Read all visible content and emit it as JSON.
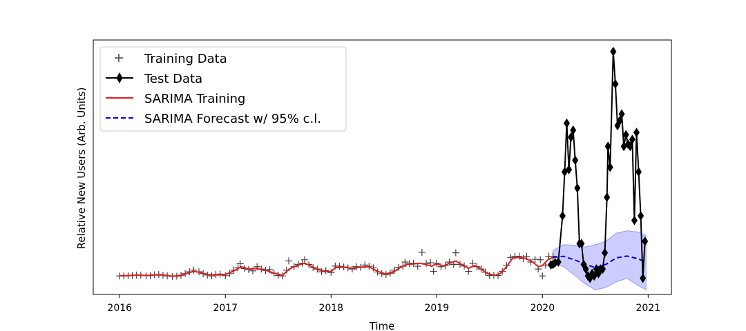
{
  "chart_data": {
    "type": "line",
    "title": "",
    "xlabel": "Time",
    "ylabel": "Relative New Users (Arb. Units)",
    "xlim": [
      2015.75,
      2021.22
    ],
    "ylim": [
      -0.05,
      1.05
    ],
    "y_ticks_shown": false,
    "x_ticks": [
      "2016",
      "2017",
      "2018",
      "2019",
      "2020",
      "2021"
    ],
    "x_tick_values": [
      2016,
      2017,
      2018,
      2019,
      2020,
      2021
    ],
    "legend_position": "top-left",
    "legend": [
      "Training Data",
      "Test Data",
      "SARIMA Training",
      "SARIMA Forecast w/ 95% c.l."
    ],
    "colors": {
      "training_data": "#404040",
      "test_data": "#000000",
      "sarima_training": "#e31a1c",
      "forecast": "#0000e6",
      "forecast_band": "#9999ff"
    },
    "series": [
      {
        "name": "Training Data",
        "style": "plus-markers",
        "points": [
          [
            2016.0,
            0.03
          ],
          [
            2016.04,
            0.03
          ],
          [
            2016.08,
            0.031
          ],
          [
            2016.12,
            0.032
          ],
          [
            2016.16,
            0.034
          ],
          [
            2016.2,
            0.033
          ],
          [
            2016.25,
            0.031
          ],
          [
            2016.29,
            0.031
          ],
          [
            2016.33,
            0.035
          ],
          [
            2016.37,
            0.036
          ],
          [
            2016.41,
            0.033
          ],
          [
            2016.45,
            0.03
          ],
          [
            2016.5,
            0.028
          ],
          [
            2016.54,
            0.029
          ],
          [
            2016.58,
            0.033
          ],
          [
            2016.62,
            0.04
          ],
          [
            2016.66,
            0.048
          ],
          [
            2016.7,
            0.055
          ],
          [
            2016.75,
            0.048
          ],
          [
            2016.79,
            0.04
          ],
          [
            2016.83,
            0.034
          ],
          [
            2016.87,
            0.03
          ],
          [
            2016.91,
            0.036
          ],
          [
            2016.95,
            0.038
          ],
          [
            2017.0,
            0.031
          ],
          [
            2017.04,
            0.04
          ],
          [
            2017.08,
            0.055
          ],
          [
            2017.12,
            0.065
          ],
          [
            2017.14,
            0.083
          ],
          [
            2017.18,
            0.062
          ],
          [
            2017.22,
            0.058
          ],
          [
            2017.26,
            0.052
          ],
          [
            2017.3,
            0.07
          ],
          [
            2017.34,
            0.06
          ],
          [
            2017.38,
            0.054
          ],
          [
            2017.42,
            0.057
          ],
          [
            2017.46,
            0.042
          ],
          [
            2017.5,
            0.032
          ],
          [
            2017.54,
            0.03
          ],
          [
            2017.58,
            0.055
          ],
          [
            2017.6,
            0.095
          ],
          [
            2017.65,
            0.07
          ],
          [
            2017.69,
            0.08
          ],
          [
            2017.73,
            0.085
          ],
          [
            2017.75,
            0.1
          ],
          [
            2017.79,
            0.08
          ],
          [
            2017.83,
            0.066
          ],
          [
            2017.87,
            0.06
          ],
          [
            2017.91,
            0.048
          ],
          [
            2017.95,
            0.053
          ],
          [
            2018.0,
            0.045
          ],
          [
            2018.04,
            0.073
          ],
          [
            2018.08,
            0.072
          ],
          [
            2018.12,
            0.069
          ],
          [
            2018.16,
            0.065
          ],
          [
            2018.2,
            0.06
          ],
          [
            2018.24,
            0.07
          ],
          [
            2018.28,
            0.067
          ],
          [
            2018.32,
            0.077
          ],
          [
            2018.36,
            0.072
          ],
          [
            2018.4,
            0.065
          ],
          [
            2018.44,
            0.047
          ],
          [
            2018.48,
            0.04
          ],
          [
            2018.52,
            0.036
          ],
          [
            2018.56,
            0.042
          ],
          [
            2018.6,
            0.055
          ],
          [
            2018.64,
            0.067
          ],
          [
            2018.68,
            0.072
          ],
          [
            2018.7,
            0.09
          ],
          [
            2018.74,
            0.083
          ],
          [
            2018.78,
            0.085
          ],
          [
            2018.82,
            0.072
          ],
          [
            2018.86,
            0.132
          ],
          [
            2018.9,
            0.084
          ],
          [
            2018.94,
            0.087
          ],
          [
            2018.97,
            0.05
          ],
          [
            2019.0,
            0.085
          ],
          [
            2019.04,
            0.07
          ],
          [
            2019.08,
            0.075
          ],
          [
            2019.12,
            0.09
          ],
          [
            2019.16,
            0.08
          ],
          [
            2019.18,
            0.13
          ],
          [
            2019.22,
            0.08
          ],
          [
            2019.26,
            0.073
          ],
          [
            2019.3,
            0.05
          ],
          [
            2019.34,
            0.085
          ],
          [
            2019.38,
            0.07
          ],
          [
            2019.42,
            0.06
          ],
          [
            2019.46,
            0.046
          ],
          [
            2019.5,
            0.032
          ],
          [
            2019.54,
            0.033
          ],
          [
            2019.58,
            0.032
          ],
          [
            2019.62,
            0.05
          ],
          [
            2019.66,
            0.075
          ],
          [
            2019.7,
            0.11
          ],
          [
            2019.74,
            0.115
          ],
          [
            2019.78,
            0.115
          ],
          [
            2019.82,
            0.105
          ],
          [
            2019.85,
            0.114
          ],
          [
            2019.89,
            0.09
          ],
          [
            2019.93,
            0.102
          ],
          [
            2019.96,
            0.06
          ],
          [
            2019.98,
            0.1
          ],
          [
            2020.0,
            0.03
          ],
          [
            2020.03,
            0.077
          ],
          [
            2020.06,
            0.115
          ],
          [
            2020.1,
            0.115
          ]
        ]
      },
      {
        "name": "SARIMA Training",
        "style": "line",
        "points": [
          [
            2016.0,
            0.031
          ],
          [
            2016.08,
            0.031
          ],
          [
            2016.16,
            0.034
          ],
          [
            2016.25,
            0.032
          ],
          [
            2016.33,
            0.034
          ],
          [
            2016.41,
            0.034
          ],
          [
            2016.5,
            0.029
          ],
          [
            2016.58,
            0.032
          ],
          [
            2016.66,
            0.045
          ],
          [
            2016.7,
            0.05
          ],
          [
            2016.75,
            0.046
          ],
          [
            2016.83,
            0.036
          ],
          [
            2016.91,
            0.034
          ],
          [
            2017.0,
            0.036
          ],
          [
            2017.08,
            0.052
          ],
          [
            2017.15,
            0.07
          ],
          [
            2017.22,
            0.06
          ],
          [
            2017.3,
            0.062
          ],
          [
            2017.38,
            0.055
          ],
          [
            2017.46,
            0.042
          ],
          [
            2017.54,
            0.033
          ],
          [
            2017.6,
            0.058
          ],
          [
            2017.65,
            0.07
          ],
          [
            2017.7,
            0.078
          ],
          [
            2017.75,
            0.085
          ],
          [
            2017.8,
            0.075
          ],
          [
            2017.87,
            0.058
          ],
          [
            2017.95,
            0.05
          ],
          [
            2018.0,
            0.048
          ],
          [
            2018.04,
            0.066
          ],
          [
            2018.12,
            0.068
          ],
          [
            2018.2,
            0.063
          ],
          [
            2018.28,
            0.068
          ],
          [
            2018.36,
            0.07
          ],
          [
            2018.44,
            0.05
          ],
          [
            2018.52,
            0.038
          ],
          [
            2018.6,
            0.05
          ],
          [
            2018.66,
            0.068
          ],
          [
            2018.72,
            0.08
          ],
          [
            2018.78,
            0.082
          ],
          [
            2018.84,
            0.085
          ],
          [
            2018.9,
            0.079
          ],
          [
            2018.95,
            0.072
          ],
          [
            2019.0,
            0.083
          ],
          [
            2019.06,
            0.072
          ],
          [
            2019.12,
            0.085
          ],
          [
            2019.18,
            0.095
          ],
          [
            2019.24,
            0.078
          ],
          [
            2019.3,
            0.063
          ],
          [
            2019.36,
            0.075
          ],
          [
            2019.42,
            0.06
          ],
          [
            2019.48,
            0.04
          ],
          [
            2019.55,
            0.033
          ],
          [
            2019.6,
            0.04
          ],
          [
            2019.66,
            0.07
          ],
          [
            2019.72,
            0.108
          ],
          [
            2019.78,
            0.11
          ],
          [
            2019.84,
            0.106
          ],
          [
            2019.9,
            0.093
          ],
          [
            2019.96,
            0.07
          ],
          [
            2020.0,
            0.075
          ],
          [
            2020.05,
            0.1
          ],
          [
            2020.1,
            0.11
          ]
        ]
      },
      {
        "name": "Test Data",
        "style": "line-with-thin-diamonds",
        "points": [
          [
            2020.08,
            0.078
          ],
          [
            2020.1,
            0.08
          ],
          [
            2020.12,
            0.087
          ],
          [
            2020.15,
            0.09
          ],
          [
            2020.19,
            0.29
          ],
          [
            2020.21,
            0.48
          ],
          [
            2020.23,
            0.69
          ],
          [
            2020.25,
            0.49
          ],
          [
            2020.27,
            0.63
          ],
          [
            2020.29,
            0.66
          ],
          [
            2020.31,
            0.53
          ],
          [
            2020.33,
            0.41
          ],
          [
            2020.35,
            0.17
          ],
          [
            2020.37,
            0.17
          ],
          [
            2020.39,
            0.08
          ],
          [
            2020.41,
            0.06
          ],
          [
            2020.43,
            0.03
          ],
          [
            2020.45,
            0.02
          ],
          [
            2020.47,
            0.04
          ],
          [
            2020.49,
            0.03
          ],
          [
            2020.51,
            0.06
          ],
          [
            2020.53,
            0.04
          ],
          [
            2020.55,
            0.06
          ],
          [
            2020.57,
            0.06
          ],
          [
            2020.59,
            0.13
          ],
          [
            2020.61,
            0.37
          ],
          [
            2020.62,
            0.59
          ],
          [
            2020.64,
            0.5
          ],
          [
            2020.67,
            1.0
          ],
          [
            2020.69,
            0.86
          ],
          [
            2020.71,
            0.68
          ],
          [
            2020.73,
            0.7
          ],
          [
            2020.75,
            0.73
          ],
          [
            2020.77,
            0.59
          ],
          [
            2020.79,
            0.64
          ],
          [
            2020.81,
            0.6
          ],
          [
            2020.83,
            0.59
          ],
          [
            2020.85,
            0.62
          ],
          [
            2020.87,
            0.27
          ],
          [
            2020.89,
            0.65
          ],
          [
            2020.91,
            0.48
          ],
          [
            2020.93,
            0.29
          ],
          [
            2020.95,
            0.02
          ],
          [
            2020.97,
            0.18
          ]
        ]
      },
      {
        "name": "SARIMA Forecast w/ 95% c.l.",
        "style": "dashed-line-with-band",
        "x": [
          2020.1,
          2020.2,
          2020.3,
          2020.4,
          2020.5,
          2020.6,
          2020.7,
          2020.8,
          2020.9,
          2020.98
        ],
        "y": [
          0.11,
          0.115,
          0.1,
          0.082,
          0.065,
          0.08,
          0.108,
          0.116,
          0.105,
          0.09
        ],
        "lower": [
          0.085,
          0.07,
          0.035,
          -0.003,
          -0.03,
          -0.02,
          0.005,
          0.02,
          -0.01,
          -0.03
        ],
        "upper": [
          0.14,
          0.165,
          0.163,
          0.155,
          0.165,
          0.18,
          0.215,
          0.225,
          0.22,
          0.205
        ]
      }
    ]
  }
}
